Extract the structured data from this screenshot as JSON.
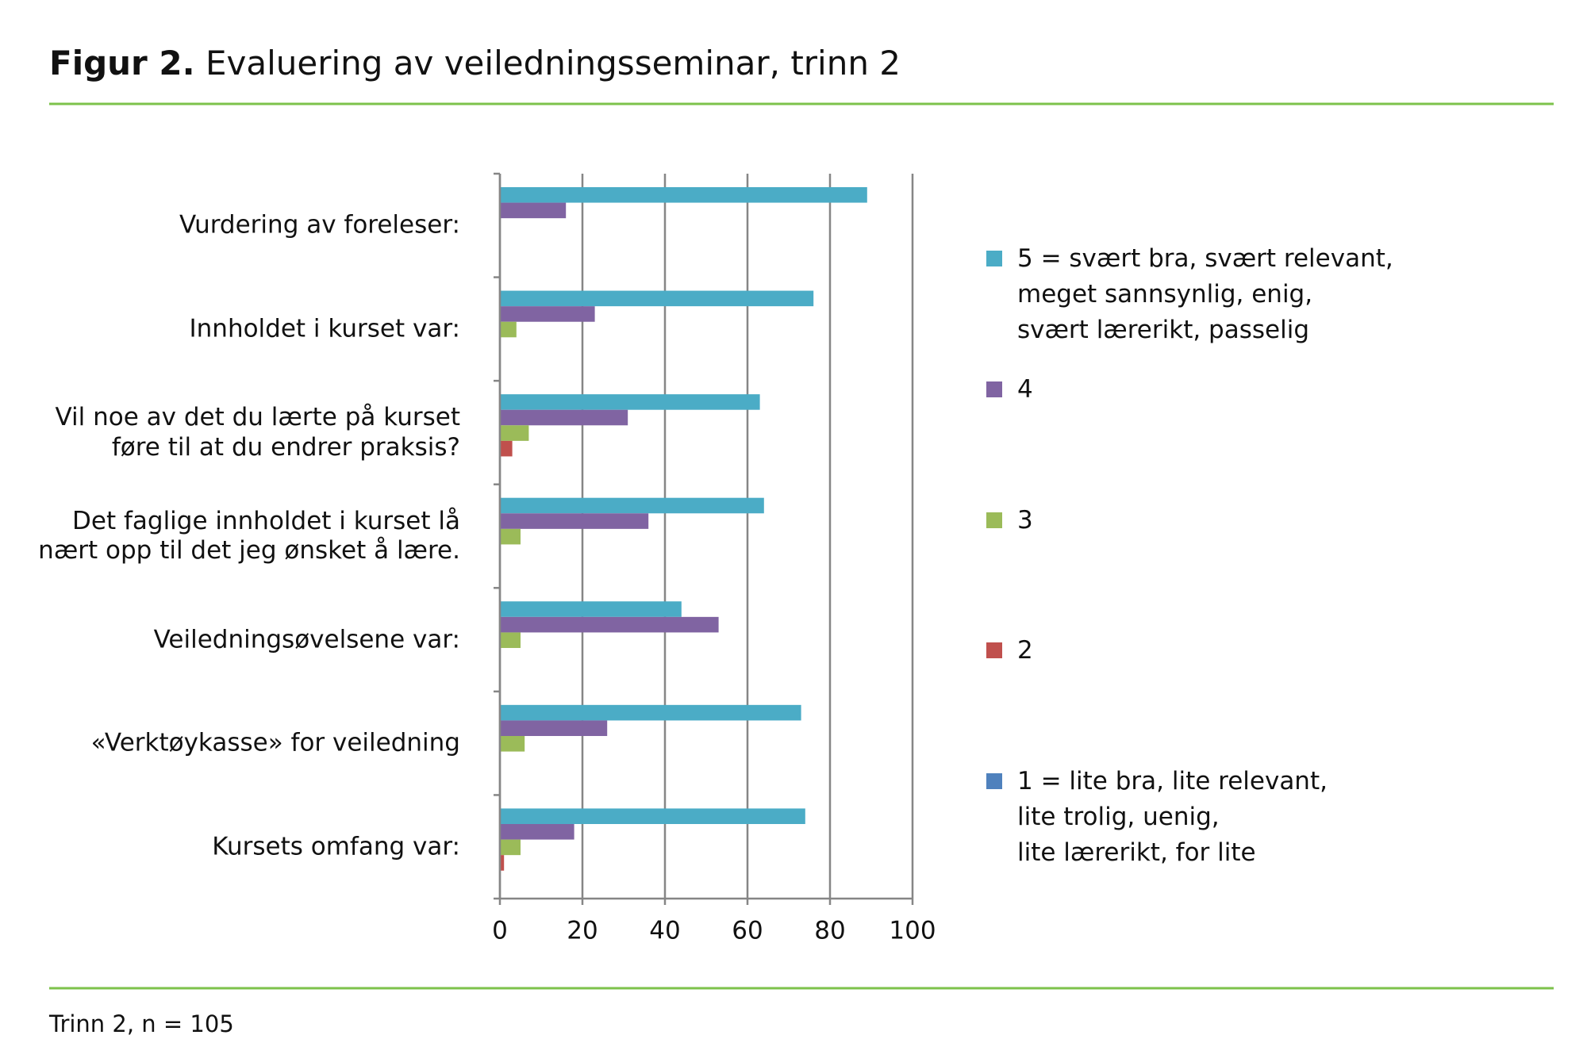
{
  "chart_data": {
    "type": "bar",
    "title": {
      "label": "Figur 2.",
      "text": "Evaluering av veiledningsseminar, trinn 2"
    },
    "categories": [
      "Vurdering av foreleser:",
      "Innholdet i kurset var:",
      "Vil noe av det du lærte på kurset\nføre til at du endrer praksis?",
      "Det faglige innholdet i kurset lå\nnært opp til det jeg ønsket å lære.",
      "Veiledningsøvelsene var:",
      "«Verktøykasse» for veiledning",
      "Kursets omfang var:"
    ],
    "series": [
      {
        "name": "5 = svært bra, svært relevant,\nmeget sannsynlig, enig,\nsvært lærerikt, passelig",
        "color": "#4BACC6",
        "values": [
          89,
          76,
          63,
          64,
          44,
          73,
          74
        ]
      },
      {
        "name": "4",
        "color": "#8064A2",
        "values": [
          16,
          23,
          31,
          36,
          53,
          26,
          18
        ]
      },
      {
        "name": "3",
        "color": "#9BBB59",
        "values": [
          0,
          4,
          7,
          5,
          5,
          6,
          5
        ]
      },
      {
        "name": "2",
        "color": "#C0504D",
        "values": [
          0,
          0,
          3,
          0,
          0,
          0,
          1
        ]
      },
      {
        "name": "1 = lite bra, lite relevant,\nlite trolig, uenig,\nlite lærerikt, for lite",
        "color": "#4F81BD",
        "values": [
          0,
          0,
          0,
          0,
          0,
          0,
          0
        ]
      }
    ],
    "xlim": [
      0,
      100
    ],
    "xticks": [
      0,
      20,
      40,
      60,
      80,
      100
    ],
    "grid": true,
    "footnote": "Trinn 2, n = 105"
  }
}
